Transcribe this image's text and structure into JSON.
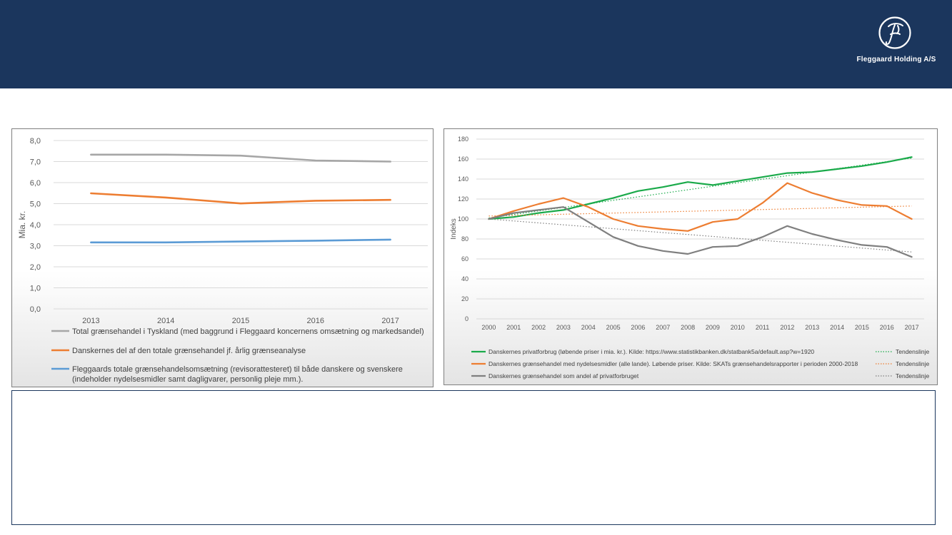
{
  "header": {
    "brand_name": "Fleggaard Holding A/S",
    "background_color": "#1b365d",
    "logo_icon": "script-f-monogram"
  },
  "chart_data": [
    {
      "type": "line",
      "title": "",
      "ylabel": "Mia. kr.",
      "xlabel": "",
      "ylim": [
        0,
        8
      ],
      "y_ticks": [
        "0,0",
        "1,0",
        "2,0",
        "3,0",
        "4,0",
        "5,0",
        "6,0",
        "7,0",
        "8,0"
      ],
      "grid": true,
      "legend_position": "bottom",
      "categories": [
        "2013",
        "2014",
        "2015",
        "2016",
        "2017"
      ],
      "series": [
        {
          "name": "Total grænsehandel i Tyskland (med baggrund i Fleggaard koncernens omsætning og markedsandel)",
          "color": "#a6a6a6",
          "values": [
            7.33,
            7.33,
            7.28,
            7.05,
            7.0
          ]
        },
        {
          "name": "Danskernes del af den totale grænsehandel jf. årlig grænseanalyse",
          "color": "#ed7d31",
          "values": [
            5.49,
            5.29,
            5.01,
            5.14,
            5.18
          ]
        },
        {
          "name": "Fleggaards totale grænsehandelsomsætning (revisorattesteret) til både danskere og svenskere (indeholder nydelsesmidler samt dagligvarer, personlig pleje mm.).",
          "color": "#5b9bd5",
          "values": [
            3.16,
            3.16,
            3.2,
            3.24,
            3.29
          ]
        }
      ]
    },
    {
      "type": "line",
      "title": "",
      "ylabel": "Indeks",
      "xlabel": "",
      "ylim": [
        0,
        180
      ],
      "y_ticks": [
        "0",
        "20",
        "40",
        "60",
        "80",
        "100",
        "120",
        "140",
        "160",
        "180"
      ],
      "grid": true,
      "legend_position": "bottom",
      "categories": [
        "2000",
        "2001",
        "2002",
        "2003",
        "2004",
        "2005",
        "2006",
        "2007",
        "2008",
        "2009",
        "2010",
        "2011",
        "2012",
        "2013",
        "2014",
        "2015",
        "2016",
        "2017"
      ],
      "trend_label": "Tendenslinje",
      "series": [
        {
          "name": "Danskernes privatforbrug (løbende priser i mia. kr.). Kilde: https://www.statistikbanken.dk/statbank5a/default.asp?w=1920",
          "color": "#1aaa4a",
          "values": [
            100,
            102,
            106,
            109,
            115,
            121,
            128,
            132,
            137,
            134,
            138,
            142,
            146,
            147,
            150,
            153,
            157,
            162
          ],
          "trend": [
            101,
            161
          ]
        },
        {
          "name": "Danskernes grænsehandel med nydelsesmidler (alle lande). Løbende priser. Kilde: SKATs grænsehandelsrapporter i perioden 2000-2018",
          "color": "#ed7d31",
          "values": [
            100,
            108,
            115,
            121,
            112,
            100,
            93,
            90,
            88,
            97,
            100,
            116,
            136,
            126,
            119,
            114,
            113,
            100
          ],
          "trend": [
            103,
            113
          ]
        },
        {
          "name": "Danskernes grænsehandel som andel af privatforbruget",
          "color": "#7f7f7f",
          "values": [
            100,
            106,
            109,
            112,
            97,
            82,
            73,
            68,
            65,
            72,
            73,
            82,
            93,
            85,
            79,
            74,
            72,
            62
          ],
          "trend": [
            100,
            67
          ]
        }
      ]
    }
  ]
}
